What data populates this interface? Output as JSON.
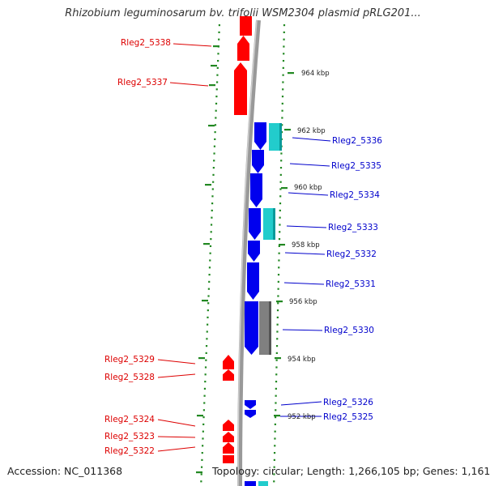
{
  "title": "Rhizobium leguminosarum bv. trifolii WSM2304 plasmid pRLG201...",
  "footer": {
    "accession": "Accession: NC_011368",
    "topology": "Topology: circular; Length: 1,266,105 bp; Genes: 1,161"
  },
  "colors": {
    "reverse_gene": "#ff0000",
    "forward_gene": "#0000ee",
    "cyan_gene": "#22cccc",
    "gray_gene": "#808080",
    "backbone": "#999999",
    "ticks": "#228822",
    "reverse_label": "#dd0000",
    "forward_label": "#0000cc"
  },
  "scale_labels": [
    "964 kbp",
    "962 kbp",
    "960 kbp",
    "958 kbp",
    "956 kbp",
    "954 kbp",
    "952 kbp"
  ],
  "reverse_gene_labels": [
    "Rleg2_5338",
    "Rleg2_5337",
    "Rleg2_5329",
    "Rleg2_5328",
    "Rleg2_5324",
    "Rleg2_5323",
    "Rleg2_5322"
  ],
  "forward_gene_labels": [
    "Rleg2_5336",
    "Rleg2_5335",
    "Rleg2_5334",
    "Rleg2_5333",
    "Rleg2_5332",
    "Rleg2_5331",
    "Rleg2_5330",
    "Rleg2_5326",
    "Rleg2_5325"
  ]
}
